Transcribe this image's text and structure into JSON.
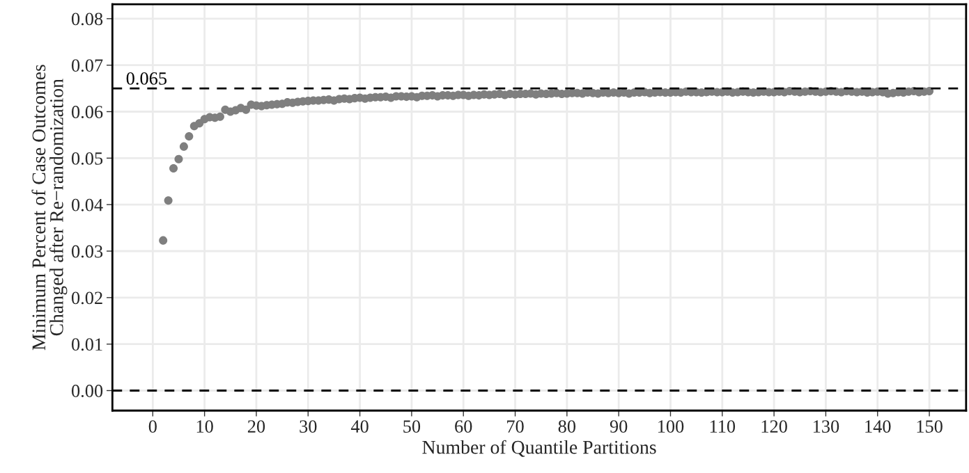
{
  "chart_data": {
    "type": "scatter",
    "xlabel": "Number of Quantile Partitions",
    "ylabel": "Minimum Percent of Case Outcomes\nChanged after Re−randomization",
    "x": [
      2,
      3,
      4,
      5,
      6,
      7,
      8,
      9,
      10,
      11,
      12,
      13,
      14,
      15,
      16,
      17,
      18,
      19,
      20,
      21,
      22,
      23,
      24,
      25,
      26,
      27,
      28,
      29,
      30,
      31,
      32,
      33,
      34,
      35,
      36,
      37,
      38,
      39,
      40,
      41,
      42,
      43,
      44,
      45,
      46,
      47,
      48,
      49,
      50,
      51,
      52,
      53,
      54,
      55,
      56,
      57,
      58,
      59,
      60,
      61,
      62,
      63,
      64,
      65,
      66,
      67,
      68,
      69,
      70,
      71,
      72,
      73,
      74,
      75,
      76,
      77,
      78,
      79,
      80,
      81,
      82,
      83,
      84,
      85,
      86,
      87,
      88,
      89,
      90,
      91,
      92,
      93,
      94,
      95,
      96,
      97,
      98,
      99,
      100,
      101,
      102,
      103,
      104,
      105,
      106,
      107,
      108,
      109,
      110,
      111,
      112,
      113,
      114,
      115,
      116,
      117,
      118,
      119,
      120,
      121,
      122,
      123,
      124,
      125,
      126,
      127,
      128,
      129,
      130,
      131,
      132,
      133,
      134,
      135,
      136,
      137,
      138,
      139,
      140,
      141,
      142,
      143,
      144,
      145,
      146,
      147,
      148,
      149,
      150
    ],
    "series": [
      {
        "color": "#7f7f7f",
        "values": [
          0.0323,
          0.0409,
          0.0478,
          0.0498,
          0.0525,
          0.0547,
          0.0569,
          0.0575,
          0.0584,
          0.0588,
          0.0587,
          0.0589,
          0.0604,
          0.06,
          0.0603,
          0.0608,
          0.0604,
          0.0615,
          0.0613,
          0.0612,
          0.0614,
          0.0615,
          0.0616,
          0.0617,
          0.062,
          0.0619,
          0.0621,
          0.0622,
          0.0623,
          0.0624,
          0.0624,
          0.0625,
          0.0626,
          0.0624,
          0.0627,
          0.0628,
          0.0627,
          0.0629,
          0.063,
          0.0628,
          0.063,
          0.0631,
          0.0631,
          0.0632,
          0.063,
          0.0633,
          0.0633,
          0.0632,
          0.0633,
          0.0631,
          0.0634,
          0.0634,
          0.0635,
          0.0633,
          0.0635,
          0.0635,
          0.0634,
          0.0636,
          0.0636,
          0.0634,
          0.0636,
          0.0635,
          0.0637,
          0.0636,
          0.0637,
          0.0638,
          0.0636,
          0.0638,
          0.0637,
          0.0638,
          0.0638,
          0.0639,
          0.0637,
          0.0639,
          0.0638,
          0.0639,
          0.064,
          0.0638,
          0.0639,
          0.064,
          0.064,
          0.0639,
          0.0641,
          0.064,
          0.0639,
          0.0641,
          0.064,
          0.0641,
          0.064,
          0.0641,
          0.0639,
          0.0641,
          0.0641,
          0.0642,
          0.064,
          0.0641,
          0.0642,
          0.0641,
          0.0641,
          0.0642,
          0.0641,
          0.0643,
          0.0642,
          0.0642,
          0.0641,
          0.0642,
          0.0643,
          0.0642,
          0.0642,
          0.0643,
          0.0641,
          0.0642,
          0.0643,
          0.0642,
          0.0641,
          0.0642,
          0.0643,
          0.0642,
          0.0642,
          0.0643,
          0.0642,
          0.0644,
          0.0643,
          0.0642,
          0.0643,
          0.0644,
          0.0643,
          0.0642,
          0.0643,
          0.0644,
          0.0643,
          0.0642,
          0.0644,
          0.0643,
          0.0642,
          0.0643,
          0.0641,
          0.0642,
          0.0643,
          0.0642,
          0.0639,
          0.064,
          0.0642,
          0.0641,
          0.0643,
          0.0644,
          0.0642,
          0.0643,
          0.0644
        ]
      }
    ],
    "xlim": [
      -7.8,
      157.1
    ],
    "ylim": [
      -0.0043,
      0.0831
    ],
    "xticks": [
      0,
      10,
      20,
      30,
      40,
      50,
      60,
      70,
      80,
      90,
      100,
      110,
      120,
      130,
      140,
      150
    ],
    "yticks": [
      {
        "value": 0,
        "label": "0.00"
      },
      0.01,
      0.02,
      0.03,
      0.04,
      0.05,
      0.06,
      0.07,
      0.08
    ],
    "ref_lines": [
      {
        "axis": "y",
        "value": 0.065,
        "label": "0.065",
        "color": "#000000",
        "line_style": "dashed"
      },
      {
        "axis": "y",
        "value": 0,
        "color": "#000000",
        "line_style": "dashed"
      }
    ],
    "grid": true,
    "marker": "circle"
  }
}
